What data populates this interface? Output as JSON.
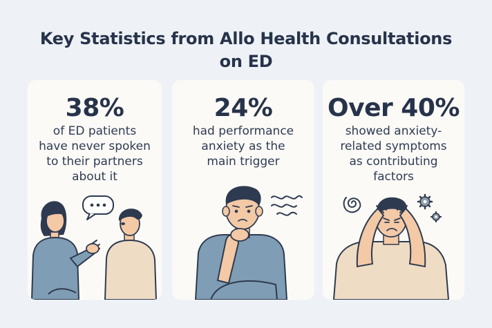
{
  "title": {
    "line1": "Key Statistics from Allo Health Consultations",
    "line2": "on ED"
  },
  "cards": [
    {
      "stat": "38%",
      "lines": [
        "of ED patients",
        "have never spoken",
        "to their partners",
        "about it"
      ]
    },
    {
      "stat": "24%",
      "lines": [
        "had performance",
        "anxiety as the",
        "main trigger"
      ]
    },
    {
      "stat": "Over 40%",
      "lines": [
        "showed anxiety-",
        "related symptoms",
        "as contributing",
        "factors"
      ]
    }
  ],
  "colors": {
    "background": "#eef2f7",
    "card": "#fbfaf7",
    "text": "#27334a",
    "shirt_blue": "#7f9db4",
    "shirt_beige": "#efdcc4",
    "skin": "#f3c9a6",
    "hair": "#2e3a4f"
  }
}
